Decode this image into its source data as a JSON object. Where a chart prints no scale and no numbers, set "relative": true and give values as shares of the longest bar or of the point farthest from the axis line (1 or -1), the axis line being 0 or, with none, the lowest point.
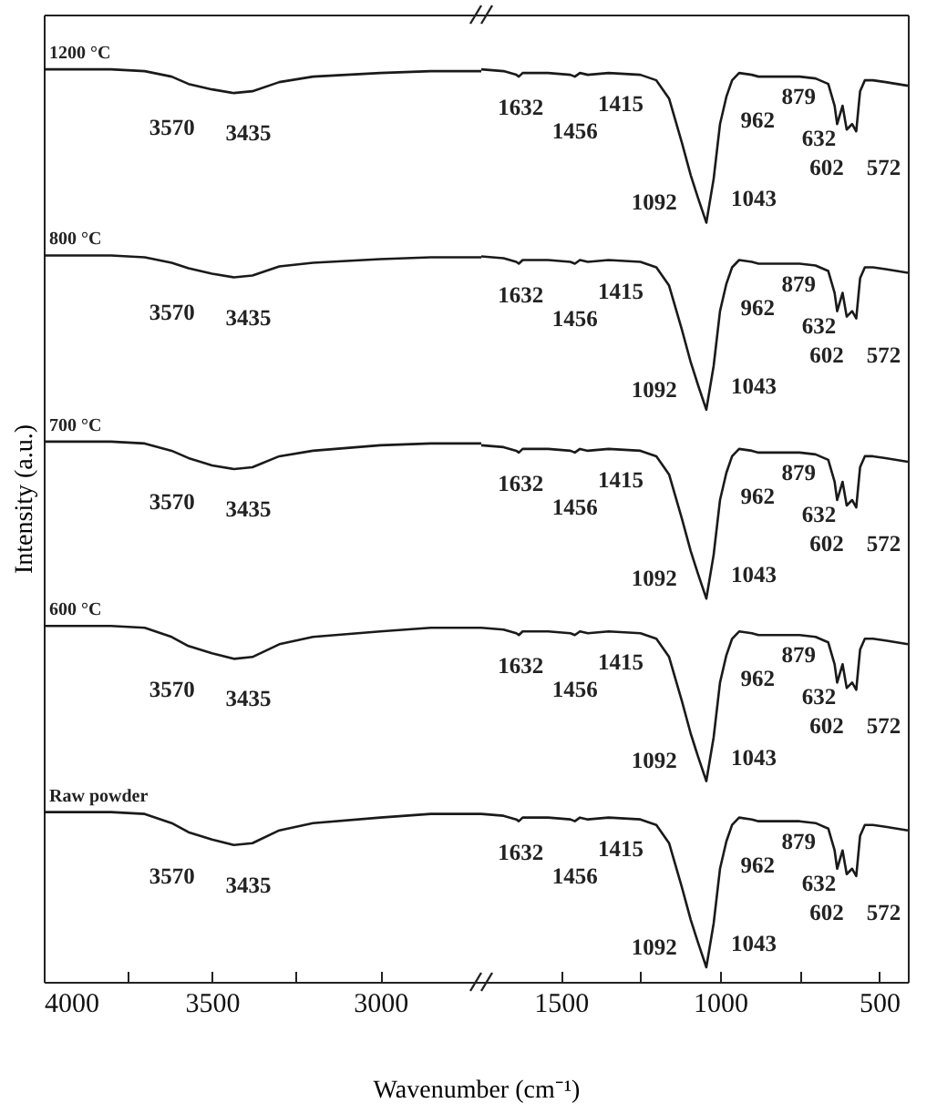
{
  "chart_data": [
    {
      "type": "line",
      "relative": true,
      "ylabel": "Intensity (a.u.)",
      "xlabel": "Wavenumber (cm⁻¹)",
      "x": [
        4000,
        3800,
        3700,
        3620,
        3570,
        3500,
        3435,
        3380,
        3300,
        3200,
        3000,
        2850,
        2700
      ],
      "xlim": [
        4000,
        2700
      ],
      "xticks": [
        4000,
        {
          "value": 3750,
          "label": null
        },
        3500,
        {
          "value": 3250,
          "label": null
        },
        3000
      ],
      "series": [
        {
          "name": "1200 °C",
          "color": "#1a1a1a",
          "values": [
            1,
            1,
            0.998,
            0.992,
            0.984,
            0.978,
            0.974,
            0.976,
            0.986,
            0.992,
            0.996,
            0.998,
            0.998
          ]
        },
        {
          "name": "800 °C",
          "color": "#1a1a1a",
          "values": [
            0.796,
            0.796,
            0.794,
            0.788,
            0.782,
            0.776,
            0.772,
            0.774,
            0.784,
            0.788,
            0.792,
            0.794,
            0.794
          ]
        },
        {
          "name": "700 °C",
          "color": "#1a1a1a",
          "values": [
            0.592,
            0.592,
            0.59,
            0.582,
            0.574,
            0.566,
            0.562,
            0.564,
            0.576,
            0.582,
            0.588,
            0.59,
            0.59
          ]
        },
        {
          "name": "600 °C",
          "color": "#1a1a1a",
          "values": [
            0.39,
            0.39,
            0.388,
            0.378,
            0.368,
            0.36,
            0.354,
            0.356,
            0.37,
            0.378,
            0.384,
            0.388,
            0.388
          ]
        },
        {
          "name": "Raw powder",
          "color": "#1a1a1a",
          "values": [
            0.186,
            0.186,
            0.184,
            0.174,
            0.164,
            0.156,
            0.15,
            0.152,
            0.166,
            0.174,
            0.18,
            0.184,
            0.184
          ]
        }
      ],
      "annotations": [
        {
          "text": "3570",
          "x": 3570,
          "y": 0.984
        },
        {
          "text": "3435",
          "x": 3435,
          "y": 0.974
        },
        {
          "text": "3570",
          "x": 3570,
          "y": 0.782
        },
        {
          "text": "3435",
          "x": 3435,
          "y": 0.772
        },
        {
          "text": "3570",
          "x": 3570,
          "y": 0.574
        },
        {
          "text": "3435",
          "x": 3435,
          "y": 0.562
        },
        {
          "text": "3570",
          "x": 3570,
          "y": 0.368
        },
        {
          "text": "3435",
          "x": 3435,
          "y": 0.354
        },
        {
          "text": "3570",
          "x": 3570,
          "y": 0.164
        },
        {
          "text": "3435",
          "x": 3435,
          "y": 0.15
        }
      ]
    },
    {
      "type": "line",
      "relative": true,
      "x": [
        1750,
        1680,
        1640,
        1632,
        1620,
        1540,
        1470,
        1456,
        1440,
        1415,
        1350,
        1250,
        1200,
        1160,
        1120,
        1092,
        1070,
        1043,
        1020,
        1000,
        980,
        962,
        940,
        900,
        879,
        800,
        750,
        700,
        660,
        640,
        632,
        615,
        602,
        585,
        572,
        560,
        545,
        520,
        480,
        410
      ],
      "xlim": [
        1750,
        410
      ],
      "xticks": [
        1500,
        {
          "value": 1250,
          "label": null
        },
        1000,
        {
          "value": 750,
          "label": null
        },
        500
      ],
      "series": [
        {
          "color": "#1a1a1a",
          "values": [
            1,
            0.998,
            0.994,
            0.992,
            0.996,
            0.996,
            0.994,
            0.992,
            0.996,
            0.994,
            0.996,
            0.994,
            0.988,
            0.968,
            0.92,
            0.884,
            0.86,
            0.832,
            0.88,
            0.94,
            0.97,
            0.988,
            0.996,
            0.994,
            0.992,
            0.992,
            0.992,
            0.99,
            0.984,
            0.96,
            0.94,
            0.96,
            0.934,
            0.94,
            0.932,
            0.976,
            0.988,
            0.988,
            0.986,
            0.982
          ]
        },
        {
          "color": "#1a1a1a",
          "values": [
            0.795,
            0.793,
            0.789,
            0.787,
            0.791,
            0.791,
            0.789,
            0.787,
            0.791,
            0.789,
            0.791,
            0.789,
            0.783,
            0.763,
            0.715,
            0.679,
            0.655,
            0.627,
            0.675,
            0.735,
            0.765,
            0.783,
            0.791,
            0.789,
            0.787,
            0.787,
            0.787,
            0.785,
            0.779,
            0.755,
            0.735,
            0.755,
            0.729,
            0.735,
            0.727,
            0.771,
            0.783,
            0.783,
            0.781,
            0.777
          ]
        },
        {
          "color": "#1a1a1a",
          "values": [
            0.588,
            0.586,
            0.582,
            0.58,
            0.584,
            0.584,
            0.582,
            0.58,
            0.584,
            0.582,
            0.584,
            0.582,
            0.576,
            0.556,
            0.508,
            0.472,
            0.448,
            0.42,
            0.468,
            0.528,
            0.558,
            0.576,
            0.584,
            0.582,
            0.58,
            0.58,
            0.58,
            0.578,
            0.572,
            0.548,
            0.528,
            0.548,
            0.522,
            0.528,
            0.52,
            0.564,
            0.576,
            0.576,
            0.574,
            0.57
          ]
        },
        {
          "color": "#1a1a1a",
          "values": [
            0.388,
            0.386,
            0.382,
            0.38,
            0.384,
            0.384,
            0.382,
            0.38,
            0.384,
            0.382,
            0.384,
            0.382,
            0.376,
            0.356,
            0.308,
            0.272,
            0.248,
            0.22,
            0.268,
            0.328,
            0.358,
            0.376,
            0.384,
            0.382,
            0.38,
            0.38,
            0.38,
            0.378,
            0.372,
            0.348,
            0.328,
            0.348,
            0.322,
            0.328,
            0.32,
            0.364,
            0.376,
            0.376,
            0.374,
            0.37
          ]
        },
        {
          "color": "#1a1a1a",
          "values": [
            0.184,
            0.182,
            0.178,
            0.176,
            0.18,
            0.18,
            0.178,
            0.176,
            0.18,
            0.178,
            0.18,
            0.178,
            0.172,
            0.152,
            0.104,
            0.068,
            0.044,
            0.016,
            0.064,
            0.124,
            0.154,
            0.172,
            0.18,
            0.178,
            0.176,
            0.176,
            0.176,
            0.174,
            0.168,
            0.144,
            0.124,
            0.144,
            0.118,
            0.124,
            0.116,
            0.16,
            0.172,
            0.172,
            0.17,
            0.166
          ]
        }
      ],
      "annotations": [
        {
          "text": "1632",
          "x": 1632,
          "y": 0.992
        },
        {
          "text": "1456",
          "x": 1456,
          "y": 0.992
        },
        {
          "text": "1415",
          "x": 1415,
          "y": 0.994
        },
        {
          "text": "1092",
          "x": 1092,
          "y": 0.884
        },
        {
          "text": "1043",
          "x": 1043,
          "y": 0.832
        },
        {
          "text": "962",
          "x": 962,
          "y": 0.988
        },
        {
          "text": "879",
          "x": 879,
          "y": 0.992
        },
        {
          "text": "632",
          "x": 632,
          "y": 0.94
        },
        {
          "text": "602",
          "x": 602,
          "y": 0.934
        },
        {
          "text": "572",
          "x": 572,
          "y": 0.932
        },
        {
          "text": "1632",
          "x": 1632,
          "y": 0.787
        },
        {
          "text": "1456",
          "x": 1456,
          "y": 0.787
        },
        {
          "text": "1415",
          "x": 1415,
          "y": 0.789
        },
        {
          "text": "1092",
          "x": 1092,
          "y": 0.679
        },
        {
          "text": "1043",
          "x": 1043,
          "y": 0.627
        },
        {
          "text": "962",
          "x": 962,
          "y": 0.783
        },
        {
          "text": "879",
          "x": 879,
          "y": 0.787
        },
        {
          "text": "632",
          "x": 632,
          "y": 0.735
        },
        {
          "text": "602",
          "x": 602,
          "y": 0.729
        },
        {
          "text": "572",
          "x": 572,
          "y": 0.727
        },
        {
          "text": "1632",
          "x": 1632,
          "y": 0.58
        },
        {
          "text": "1456",
          "x": 1456,
          "y": 0.58
        },
        {
          "text": "1415",
          "x": 1415,
          "y": 0.582
        },
        {
          "text": "1092",
          "x": 1092,
          "y": 0.472
        },
        {
          "text": "1043",
          "x": 1043,
          "y": 0.42
        },
        {
          "text": "962",
          "x": 962,
          "y": 0.576
        },
        {
          "text": "879",
          "x": 879,
          "y": 0.58
        },
        {
          "text": "632",
          "x": 632,
          "y": 0.528
        },
        {
          "text": "602",
          "x": 602,
          "y": 0.522
        },
        {
          "text": "572",
          "x": 572,
          "y": 0.52
        },
        {
          "text": "1632",
          "x": 1632,
          "y": 0.38
        },
        {
          "text": "1456",
          "x": 1456,
          "y": 0.38
        },
        {
          "text": "1415",
          "x": 1415,
          "y": 0.382
        },
        {
          "text": "1092",
          "x": 1092,
          "y": 0.272
        },
        {
          "text": "1043",
          "x": 1043,
          "y": 0.22
        },
        {
          "text": "962",
          "x": 962,
          "y": 0.376
        },
        {
          "text": "879",
          "x": 879,
          "y": 0.38
        },
        {
          "text": "632",
          "x": 632,
          "y": 0.328
        },
        {
          "text": "602",
          "x": 602,
          "y": 0.322
        },
        {
          "text": "572",
          "x": 572,
          "y": 0.32
        },
        {
          "text": "1632",
          "x": 1632,
          "y": 0.176
        },
        {
          "text": "1456",
          "x": 1456,
          "y": 0.176
        },
        {
          "text": "1415",
          "x": 1415,
          "y": 0.178
        },
        {
          "text": "1092",
          "x": 1092,
          "y": 0.068
        },
        {
          "text": "1043",
          "x": 1043,
          "y": 0.016
        },
        {
          "text": "962",
          "x": 962,
          "y": 0.172
        },
        {
          "text": "879",
          "x": 879,
          "y": 0.176
        },
        {
          "text": "632",
          "x": 632,
          "y": 0.124
        },
        {
          "text": "602",
          "x": 602,
          "y": 0.118
        },
        {
          "text": "572",
          "x": 572,
          "y": 0.116
        }
      ]
    }
  ]
}
